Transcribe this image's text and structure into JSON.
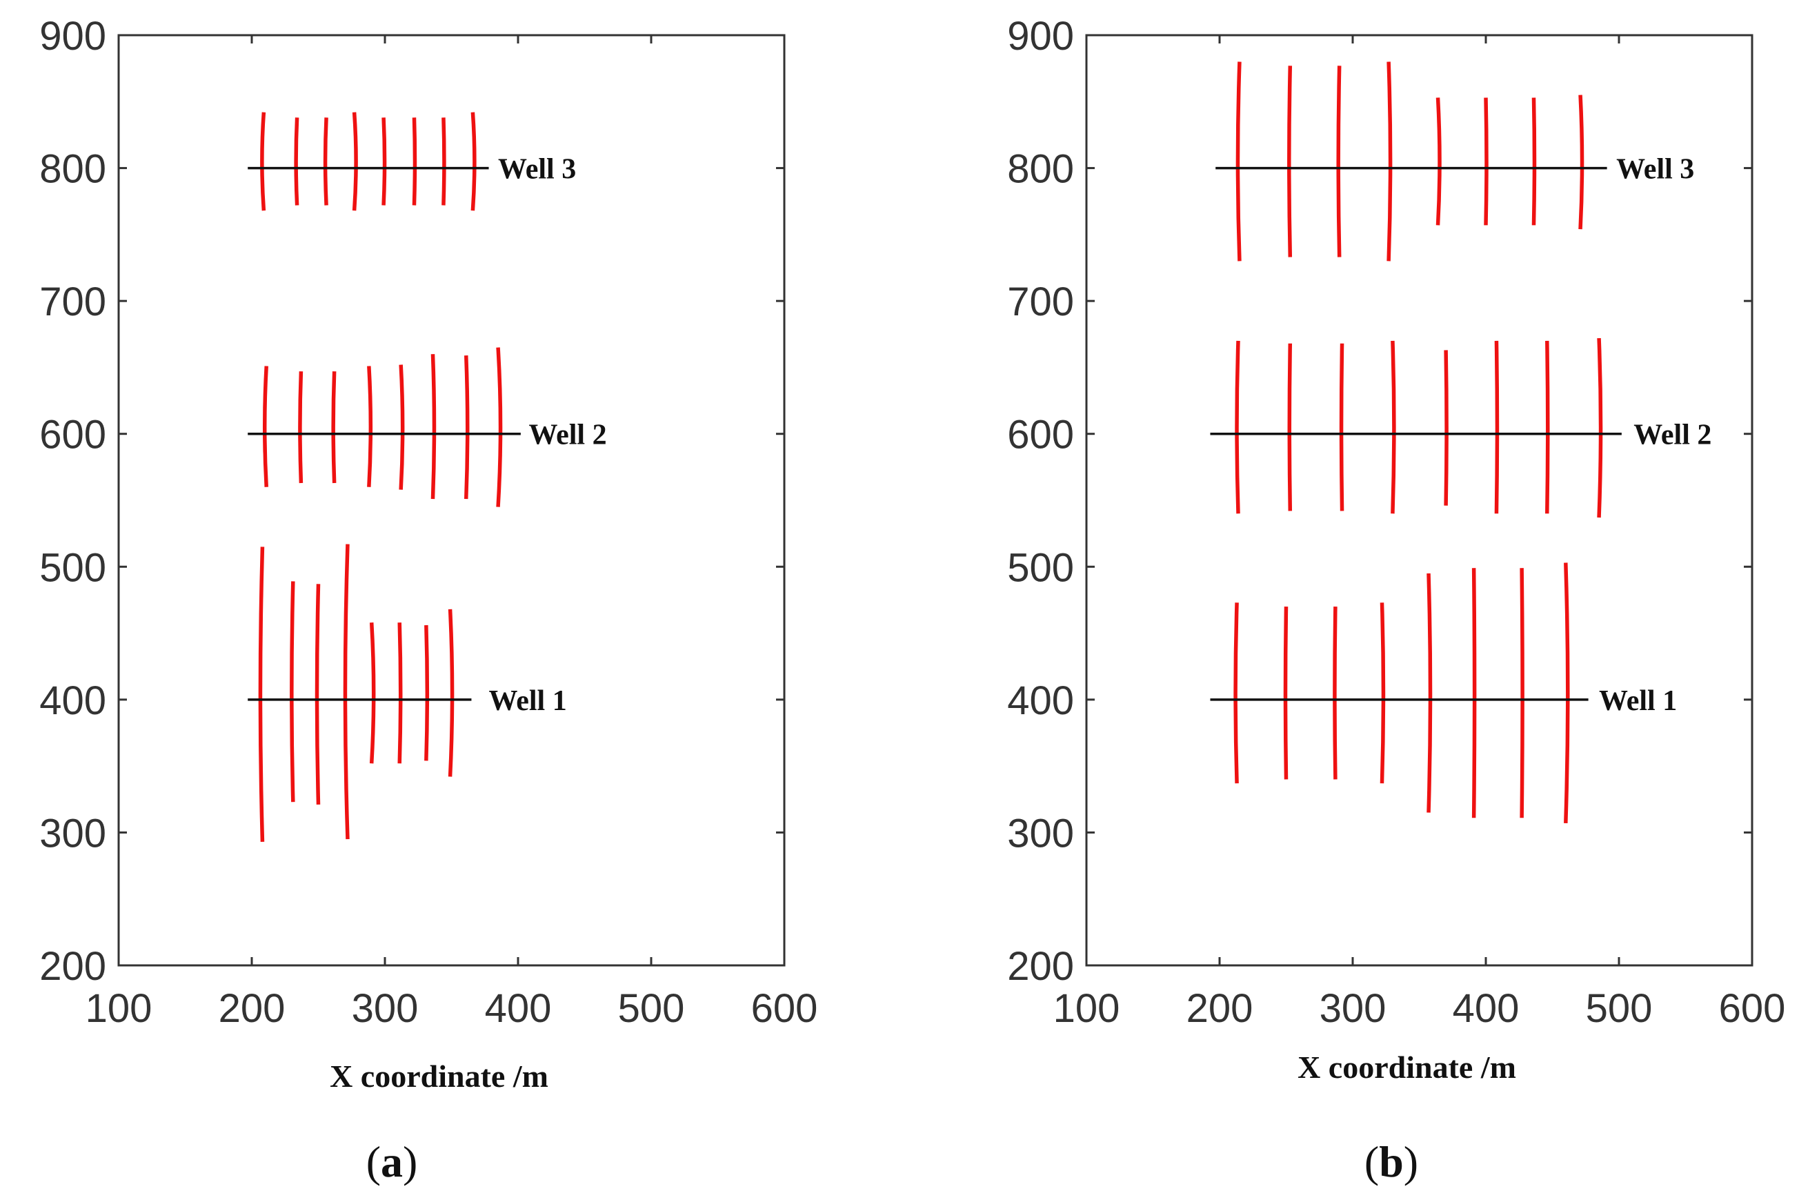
{
  "chart_data": [
    {
      "type": "line",
      "panel": "a",
      "caption_open": "(",
      "caption_letter": "a",
      "caption_close": ")",
      "title": "",
      "xlabel": "X coordinate /m",
      "ylabel": "",
      "xlim": [
        100,
        600
      ],
      "ylim": [
        200,
        900
      ],
      "xticks": [
        100,
        200,
        300,
        400,
        500,
        600
      ],
      "yticks": [
        200,
        300,
        400,
        500,
        600,
        700,
        800,
        900
      ],
      "grid": false,
      "wells": [
        {
          "name": "Well 3",
          "y": 800,
          "x_start": 197,
          "x_end": 378,
          "label_x": 385,
          "fractures": [
            {
              "x": 209,
              "top": 842,
              "bottom": 768,
              "bend": -2.5
            },
            {
              "x": 234,
              "top": 838,
              "bottom": 772,
              "bend": -1.5
            },
            {
              "x": 256,
              "top": 838,
              "bottom": 772,
              "bend": -1.5
            },
            {
              "x": 277,
              "top": 842,
              "bottom": 768,
              "bend": 2.5
            },
            {
              "x": 299,
              "top": 838,
              "bottom": 772,
              "bend": 1.5
            },
            {
              "x": 322,
              "top": 838,
              "bottom": 772,
              "bend": 1
            },
            {
              "x": 344,
              "top": 838,
              "bottom": 772,
              "bend": 1
            },
            {
              "x": 366,
              "top": 842,
              "bottom": 768,
              "bend": 2.5
            }
          ]
        },
        {
          "name": "Well 2",
          "y": 600,
          "x_start": 197,
          "x_end": 402,
          "label_x": 408,
          "fractures": [
            {
              "x": 211,
              "top": 651,
              "bottom": 560,
              "bend": -2.5
            },
            {
              "x": 237,
              "top": 647,
              "bottom": 563,
              "bend": -1.5
            },
            {
              "x": 262,
              "top": 647,
              "bottom": 563,
              "bend": -1.5
            },
            {
              "x": 288,
              "top": 651,
              "bottom": 560,
              "bend": 2.5
            },
            {
              "x": 312,
              "top": 652,
              "bottom": 558,
              "bend": 2.5
            },
            {
              "x": 336,
              "top": 660,
              "bottom": 551,
              "bend": 2
            },
            {
              "x": 361,
              "top": 659,
              "bottom": 551,
              "bend": 2
            },
            {
              "x": 385,
              "top": 665,
              "bottom": 545,
              "bend": 3.5
            }
          ]
        },
        {
          "name": "Well 1",
          "y": 400,
          "x_start": 197,
          "x_end": 365,
          "label_x": 378,
          "fractures": [
            {
              "x": 208,
              "top": 515,
              "bottom": 293,
              "bend": -3
            },
            {
              "x": 231,
              "top": 489,
              "bottom": 323,
              "bend": -2
            },
            {
              "x": 250,
              "top": 487,
              "bottom": 321,
              "bend": -2
            },
            {
              "x": 272,
              "top": 517,
              "bottom": 295,
              "bend": -3.5
            },
            {
              "x": 290,
              "top": 458,
              "bottom": 352,
              "bend": 3
            },
            {
              "x": 311,
              "top": 458,
              "bottom": 352,
              "bend": 1.5
            },
            {
              "x": 331,
              "top": 456,
              "bottom": 354,
              "bend": 1.5
            },
            {
              "x": 349,
              "top": 468,
              "bottom": 342,
              "bend": 3
            }
          ]
        }
      ]
    },
    {
      "type": "line",
      "panel": "b",
      "caption_open": "(",
      "caption_letter": "b",
      "caption_close": ")",
      "title": "",
      "xlabel": "X coordinate /m",
      "ylabel": "",
      "xlim": [
        100,
        600
      ],
      "ylim": [
        200,
        900
      ],
      "xticks": [
        100,
        200,
        300,
        400,
        500,
        600
      ],
      "yticks": [
        200,
        300,
        400,
        500,
        600,
        700,
        800,
        900
      ],
      "grid": false,
      "wells": [
        {
          "name": "Well 3",
          "y": 800,
          "x_start": 197,
          "x_end": 491,
          "label_x": 498,
          "fractures": [
            {
              "x": 215,
              "top": 880,
              "bottom": 730,
              "bend": -2.5
            },
            {
              "x": 253,
              "top": 877,
              "bottom": 733,
              "bend": -1.5
            },
            {
              "x": 290,
              "top": 877,
              "bottom": 733,
              "bend": -1.5
            },
            {
              "x": 327,
              "top": 880,
              "bottom": 730,
              "bend": 2.5
            },
            {
              "x": 364,
              "top": 853,
              "bottom": 757,
              "bend": 2.5
            },
            {
              "x": 400,
              "top": 853,
              "bottom": 757,
              "bend": 1
            },
            {
              "x": 436,
              "top": 853,
              "bottom": 757,
              "bend": 1
            },
            {
              "x": 471,
              "top": 855,
              "bottom": 754,
              "bend": 2.5
            }
          ]
        },
        {
          "name": "Well 2",
          "y": 600,
          "x_start": 193,
          "x_end": 502,
          "label_x": 511,
          "fractures": [
            {
              "x": 214,
              "top": 670,
              "bottom": 540,
              "bend": -2
            },
            {
              "x": 253,
              "top": 668,
              "bottom": 542,
              "bend": -1
            },
            {
              "x": 292,
              "top": 668,
              "bottom": 542,
              "bend": -1
            },
            {
              "x": 330,
              "top": 670,
              "bottom": 540,
              "bend": 2
            },
            {
              "x": 370,
              "top": 663,
              "bottom": 546,
              "bend": 1
            },
            {
              "x": 408,
              "top": 670,
              "bottom": 540,
              "bend": 1
            },
            {
              "x": 446,
              "top": 670,
              "bottom": 540,
              "bend": 1
            },
            {
              "x": 485,
              "top": 672,
              "bottom": 537,
              "bend": 2.5
            }
          ]
        },
        {
          "name": "Well 1",
          "y": 400,
          "x_start": 193,
          "x_end": 477,
          "label_x": 485,
          "fractures": [
            {
              "x": 213,
              "top": 473,
              "bottom": 337,
              "bend": -2
            },
            {
              "x": 250,
              "top": 470,
              "bottom": 340,
              "bend": -1
            },
            {
              "x": 287,
              "top": 470,
              "bottom": 340,
              "bend": -1
            },
            {
              "x": 322,
              "top": 473,
              "bottom": 337,
              "bend": 2
            },
            {
              "x": 357,
              "top": 495,
              "bottom": 315,
              "bend": 2.5
            },
            {
              "x": 391,
              "top": 499,
              "bottom": 311,
              "bend": 1
            },
            {
              "x": 427,
              "top": 499,
              "bottom": 311,
              "bend": 1
            },
            {
              "x": 460,
              "top": 503,
              "bottom": 307,
              "bend": 3
            }
          ]
        }
      ]
    }
  ],
  "colors": {
    "fracture": "#ee1111",
    "well": "#111111",
    "axis": "#333333"
  }
}
